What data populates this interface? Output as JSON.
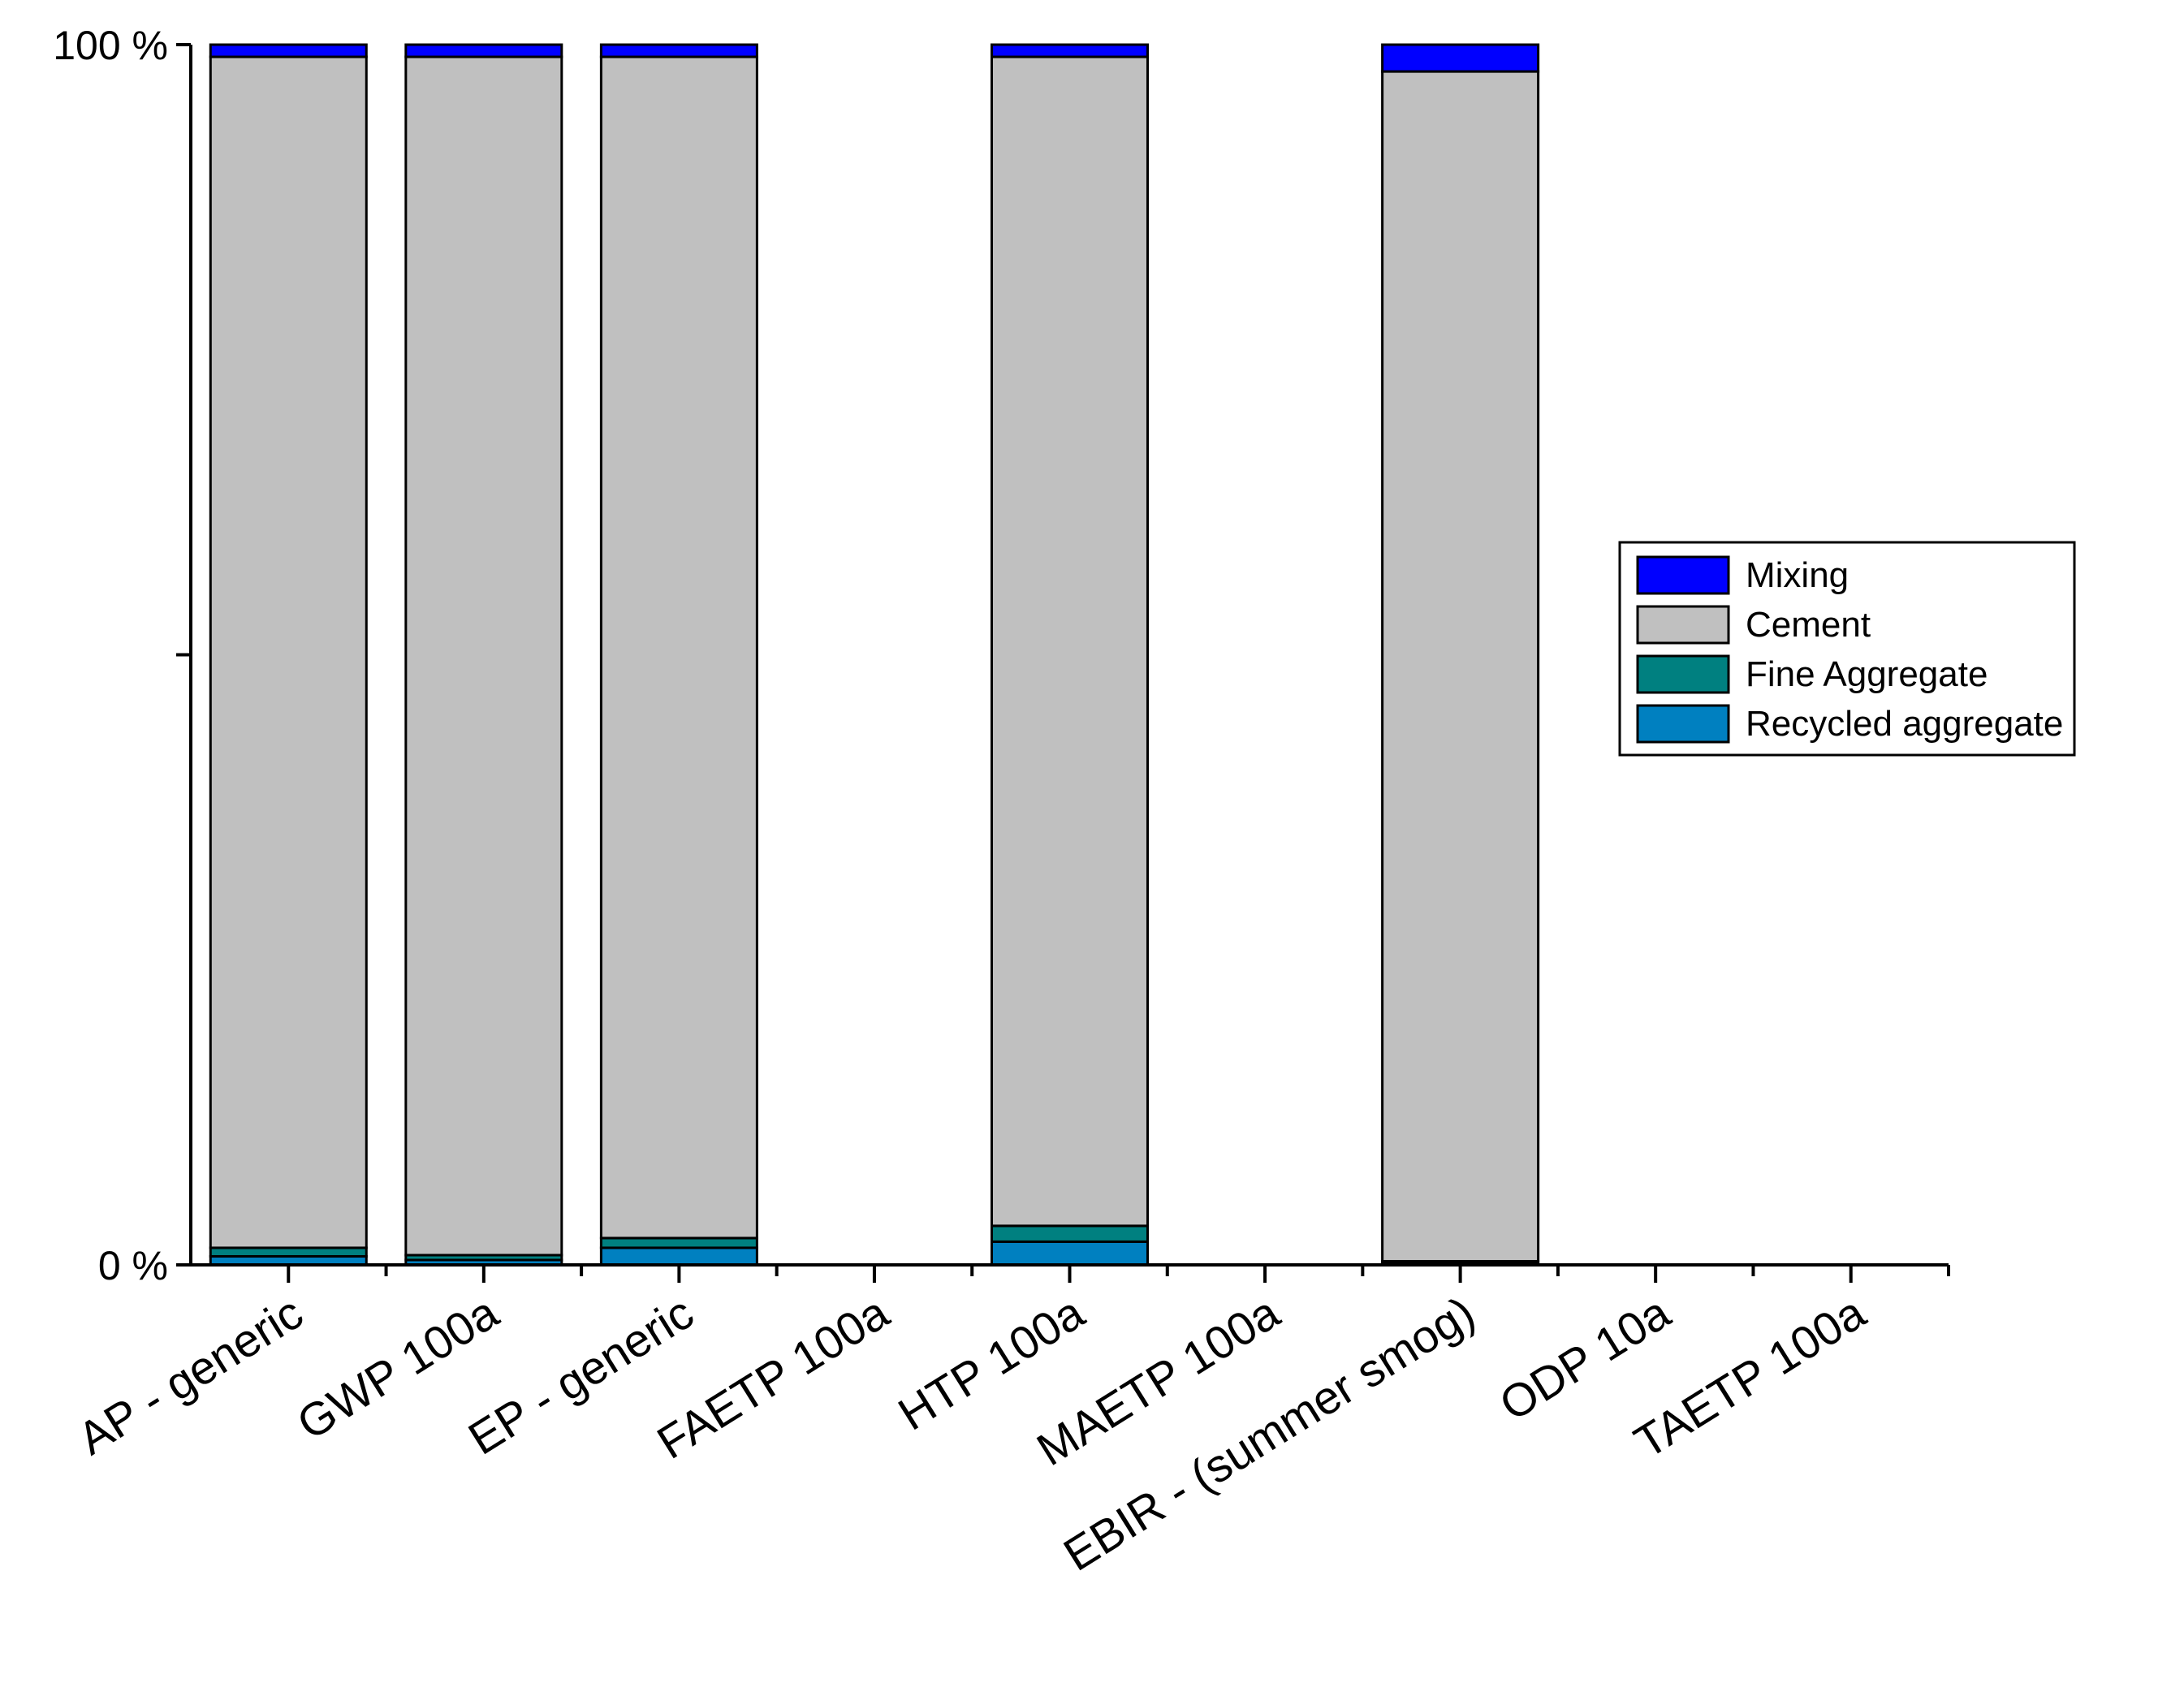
{
  "chart_data": {
    "type": "bar",
    "stacked": true,
    "normalized": true,
    "title": "",
    "xlabel": "",
    "ylabel": "",
    "ylim": [
      0,
      100
    ],
    "y_tick_labels": [
      {
        "value": 0,
        "label": "0 %"
      },
      {
        "value": 50,
        "label": ""
      },
      {
        "value": 100,
        "label": "100 %"
      }
    ],
    "categories": [
      "AP - generic",
      "GWP 100a",
      "EP - generic",
      "FAETP 100a",
      "HTP 100a",
      "MAETP 100a",
      "EBIR - (summer smog)",
      "ODP 10a",
      "TAETP 100a"
    ],
    "series": [
      {
        "name": "Recycled aggregate",
        "color": "#0080C0",
        "values": [
          0.7,
          0.4,
          1.4,
          0,
          1.9,
          0,
          0.1,
          0,
          0
        ]
      },
      {
        "name": "Fine Aggregate",
        "color": "#008080",
        "values": [
          0.7,
          0.4,
          0.8,
          0,
          1.3,
          0,
          0.2,
          0,
          0
        ]
      },
      {
        "name": "Cement",
        "color": "#C0C0C0",
        "values": [
          97.6,
          98.2,
          96.8,
          0,
          95.8,
          0,
          97.5,
          0,
          0
        ]
      },
      {
        "name": "Mixing",
        "color": "#0000FF",
        "values": [
          1.0,
          1.0,
          1.0,
          0,
          1.0,
          0,
          2.2,
          0,
          0
        ]
      }
    ],
    "legend": {
      "position": "right",
      "order": [
        "Mixing",
        "Cement",
        "Fine Aggregate",
        "Recycled aggregate"
      ]
    }
  }
}
